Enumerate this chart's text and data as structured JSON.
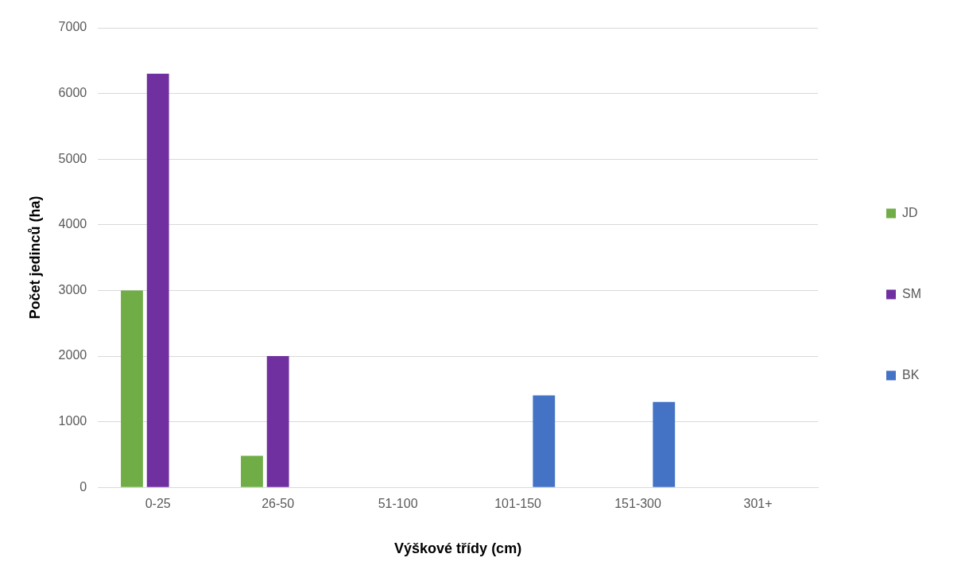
{
  "chart_data": {
    "type": "bar",
    "xlabel": "Výškové třídy (cm)",
    "ylabel": "Počet jedinců (ha)",
    "categories": [
      "0-25",
      "26-50",
      "51-100",
      "101-150",
      "151-300",
      "301+"
    ],
    "series": [
      {
        "name": "JD",
        "color": "#70ad47",
        "values": [
          3000,
          480,
          0,
          0,
          0,
          0
        ]
      },
      {
        "name": "SM",
        "color": "#7030a0",
        "values": [
          6300,
          2000,
          0,
          0,
          0,
          0
        ]
      },
      {
        "name": "BK",
        "color": "#4472c4",
        "values": [
          0,
          0,
          0,
          1400,
          1300,
          0
        ]
      }
    ],
    "ylim": [
      0,
      7000
    ],
    "yticks": [
      0,
      1000,
      2000,
      3000,
      4000,
      5000,
      6000,
      7000
    ],
    "grid": "y",
    "legend": "right"
  }
}
